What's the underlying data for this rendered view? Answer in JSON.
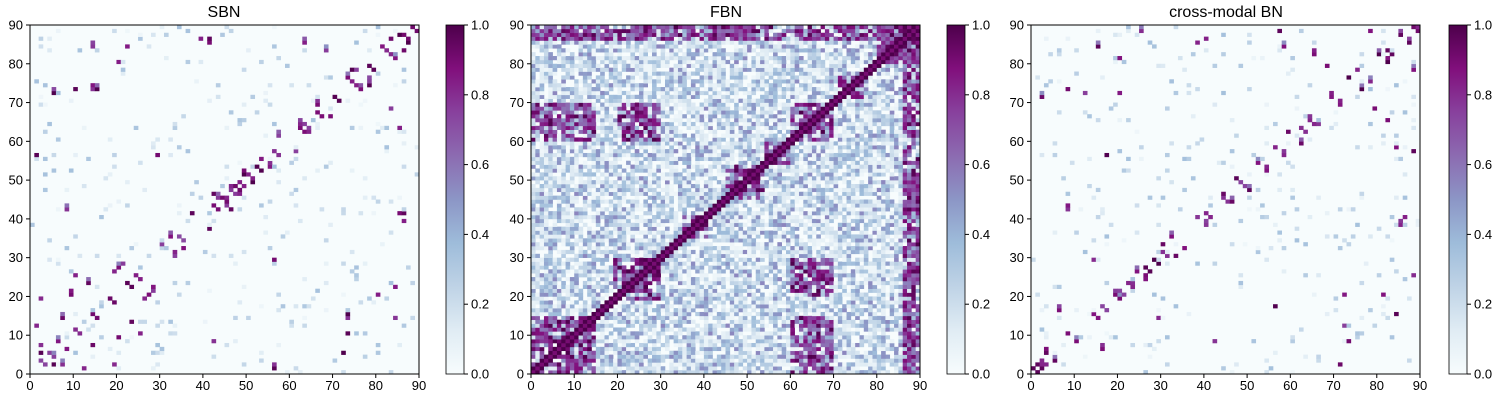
{
  "chart_data": [
    {
      "type": "heatmap",
      "title": "SBN",
      "xlim": [
        0,
        90
      ],
      "ylim": [
        0,
        90
      ],
      "x_ticks": [
        "0",
        "10",
        "20",
        "30",
        "40",
        "50",
        "60",
        "70",
        "80",
        "90"
      ],
      "y_ticks": [
        "0",
        "10",
        "20",
        "30",
        "40",
        "50",
        "60",
        "70",
        "80",
        "90"
      ],
      "colorbar": {
        "range": [
          0,
          1
        ],
        "ticks": [
          "0.0",
          "0.2",
          "0.4",
          "0.6",
          "0.8",
          "1.0"
        ],
        "colormap": "BuPu"
      },
      "density": "sparse",
      "strong_cells": [
        [
          1,
          56
        ],
        [
          2,
          7
        ],
        [
          4,
          5
        ],
        [
          5,
          2
        ],
        [
          8,
          6
        ],
        [
          12,
          1
        ],
        [
          14,
          7
        ],
        [
          19,
          2
        ],
        [
          20,
          9
        ],
        [
          23,
          13
        ],
        [
          25,
          10
        ],
        [
          26,
          19
        ],
        [
          19,
          26
        ],
        [
          27,
          20
        ],
        [
          21,
          28
        ],
        [
          28,
          21
        ],
        [
          30,
          33
        ],
        [
          33,
          30
        ],
        [
          35,
          32
        ],
        [
          37,
          41
        ],
        [
          41,
          37
        ],
        [
          45,
          43
        ],
        [
          44,
          45
        ],
        [
          49,
          51
        ],
        [
          51,
          49
        ],
        [
          53,
          55
        ],
        [
          55,
          53
        ],
        [
          47,
          48
        ],
        [
          57,
          61
        ],
        [
          61,
          57
        ],
        [
          64,
          62
        ],
        [
          63,
          64
        ],
        [
          66,
          69
        ],
        [
          69,
          66
        ],
        [
          73,
          76
        ],
        [
          76,
          73
        ],
        [
          81,
          84
        ],
        [
          84,
          81
        ],
        [
          85,
          87
        ],
        [
          87,
          85
        ],
        [
          88,
          90
        ],
        [
          90,
          88
        ],
        [
          73,
          10
        ],
        [
          73,
          14
        ],
        [
          73,
          15
        ],
        [
          84,
          14
        ],
        [
          84,
          22
        ],
        [
          86,
          39
        ],
        [
          86,
          41
        ],
        [
          85,
          63
        ],
        [
          83,
          68
        ],
        [
          78,
          74
        ],
        [
          75,
          78
        ],
        [
          83,
          86
        ],
        [
          72,
          5
        ],
        [
          56,
          29
        ],
        [
          42,
          8
        ],
        [
          20,
          80
        ],
        [
          41,
          85
        ],
        [
          46,
          42
        ],
        [
          48,
          46
        ],
        [
          53,
          52
        ]
      ]
    },
    {
      "type": "heatmap",
      "title": "FBN",
      "xlim": [
        0,
        90
      ],
      "ylim": [
        0,
        90
      ],
      "x_ticks": [
        "0",
        "10",
        "20",
        "30",
        "40",
        "50",
        "60",
        "70",
        "80",
        "90"
      ],
      "y_ticks": [
        "0",
        "10",
        "20",
        "30",
        "40",
        "50",
        "60",
        "70",
        "80",
        "90"
      ],
      "colorbar": {
        "range": [
          0,
          1
        ],
        "ticks": [
          "0.0",
          "0.2",
          "0.4",
          "0.6",
          "0.8",
          "1.0"
        ],
        "colormap": "BuPu"
      },
      "density": "dense",
      "strong_blocks": [
        [
          19,
          30,
          19,
          30
        ],
        [
          35,
          41,
          35,
          41
        ],
        [
          45,
          54,
          45,
          54
        ],
        [
          54,
          60,
          54,
          60
        ],
        [
          71,
          77,
          71,
          77
        ],
        [
          80,
          90,
          80,
          90
        ],
        [
          0,
          15,
          0,
          15
        ],
        [
          60,
          70,
          60,
          70
        ],
        [
          20,
          30,
          60,
          70
        ],
        [
          60,
          70,
          20,
          30
        ],
        [
          0,
          15,
          60,
          70
        ],
        [
          60,
          70,
          0,
          15
        ],
        [
          86,
          90,
          0,
          90
        ],
        [
          0,
          90,
          86,
          90
        ]
      ]
    },
    {
      "type": "heatmap",
      "title": "cross-modal BN",
      "xlim": [
        0,
        90
      ],
      "ylim": [
        0,
        90
      ],
      "x_ticks": [
        "0",
        "10",
        "20",
        "30",
        "40",
        "50",
        "60",
        "70",
        "80",
        "90"
      ],
      "y_ticks": [
        "0",
        "10",
        "20",
        "30",
        "40",
        "50",
        "60",
        "70",
        "80",
        "90"
      ],
      "colorbar": {
        "range": [
          0,
          1
        ],
        "ticks": [
          "0.0",
          "0.2",
          "0.4",
          "0.6",
          "0.8",
          "1.0"
        ],
        "colormap": "BuPu"
      },
      "density": "sparse",
      "strong_cells": [
        [
          1,
          2
        ],
        [
          2,
          1
        ],
        [
          3,
          5
        ],
        [
          5,
          3
        ],
        [
          6,
          16
        ],
        [
          16,
          6
        ],
        [
          8,
          10
        ],
        [
          10,
          8
        ],
        [
          14,
          29
        ],
        [
          29,
          14
        ],
        [
          19,
          20
        ],
        [
          20,
          19
        ],
        [
          22,
          23
        ],
        [
          23,
          22
        ],
        [
          24,
          26
        ],
        [
          26,
          24
        ],
        [
          30,
          33
        ],
        [
          33,
          30
        ],
        [
          35,
          32
        ],
        [
          38,
          40
        ],
        [
          40,
          38
        ],
        [
          44,
          46
        ],
        [
          46,
          44
        ],
        [
          47,
          50
        ],
        [
          50,
          47
        ],
        [
          52,
          54
        ],
        [
          54,
          52
        ],
        [
          56,
          58
        ],
        [
          58,
          56
        ],
        [
          59,
          62
        ],
        [
          62,
          59
        ],
        [
          64,
          66
        ],
        [
          66,
          64
        ],
        [
          69,
          71
        ],
        [
          71,
          69
        ],
        [
          73,
          76
        ],
        [
          76,
          73
        ],
        [
          80,
          82
        ],
        [
          82,
          80
        ],
        [
          85,
          87
        ],
        [
          87,
          85
        ],
        [
          88,
          90
        ],
        [
          90,
          88
        ],
        [
          72,
          12
        ],
        [
          73,
          8
        ],
        [
          81,
          20
        ],
        [
          84,
          15
        ],
        [
          88,
          25
        ],
        [
          86,
          40
        ],
        [
          84,
          58
        ],
        [
          82,
          65
        ],
        [
          79,
          68
        ],
        [
          75,
          78
        ],
        [
          78,
          88
        ],
        [
          71,
          2
        ],
        [
          56,
          17
        ],
        [
          42,
          8
        ],
        [
          20,
          72
        ],
        [
          38,
          85
        ],
        [
          88,
          57
        ]
      ]
    }
  ]
}
